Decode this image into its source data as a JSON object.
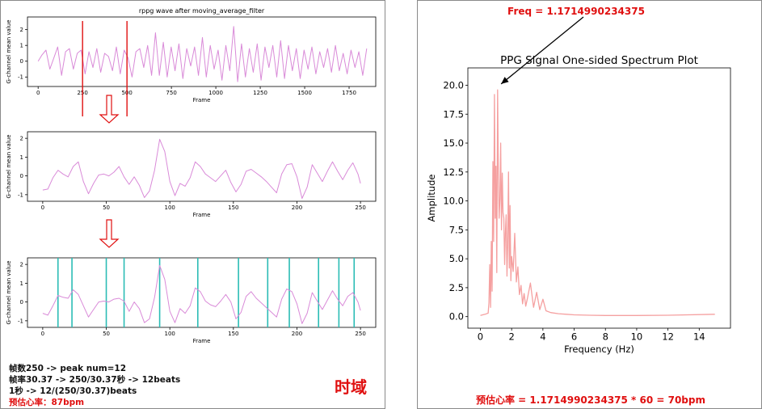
{
  "left": {
    "domain_label": "时域",
    "notes": [
      "帧数250 -> peak num=12",
      "帧率30.37 -> 250/30.37秒 -> 12beats",
      "1秒 -> 12/(250/30.37)beats"
    ],
    "estimate": "预估心率：87bpm"
  },
  "right": {
    "annotation": "Freq = 1.1714990234375",
    "result": "预估心率 = 1.1714990234375 * 60 = 70bpm"
  },
  "colors": {
    "wave": "#d98ad8",
    "spectrum": "#f5a0a0",
    "peak_line": "#2bbcb5",
    "marker": "#e01010",
    "axis": "#000000"
  },
  "chart_data": [
    {
      "id": "wave_full",
      "type": "line",
      "title": "rppg wave after moving_average_filter",
      "xlabel": "Frame",
      "ylabel": "G-channel mean value",
      "xlim": [
        -60,
        1900
      ],
      "ylim": [
        -1.6,
        2.8
      ],
      "xticks": [
        0,
        250,
        500,
        750,
        1000,
        1250,
        1500,
        1750
      ],
      "yticks": [
        -1,
        0,
        1,
        2
      ],
      "n_points": 1850,
      "markers_x": [
        250,
        500
      ],
      "series": [
        {
          "values": [
            0.0,
            0.4,
            0.7,
            -0.5,
            0.2,
            0.9,
            -0.9,
            0.6,
            0.8,
            -0.5,
            0.5,
            0.7,
            -0.8,
            0.6,
            -0.4,
            0.8,
            -0.7,
            0.5,
            0.3,
            -0.6,
            0.9,
            -0.8,
            0.7,
            0.2,
            -1.0,
            0.6,
            0.8,
            -0.4,
            1.0,
            -0.9,
            1.8,
            -0.9,
            1.2,
            -1.0,
            0.9,
            -0.6,
            1.1,
            -1.1,
            0.8,
            -0.3,
            0.9,
            -0.9,
            1.5,
            -1.0,
            1.0,
            -0.5,
            0.7,
            -1.2,
            1.0,
            -0.6,
            2.2,
            -1.3,
            1.1,
            -1.0,
            0.8,
            -0.7,
            1.1,
            -1.2,
            0.9,
            -0.4,
            1.0,
            -1.0,
            1.3,
            -1.1,
            1.0,
            -0.6,
            0.8,
            -1.1,
            0.7,
            -0.5,
            0.9,
            -0.8,
            0.6,
            -0.4,
            0.8,
            -0.7,
            1.0,
            -0.6,
            0.5,
            -0.8,
            0.7,
            -0.4,
            0.6,
            -0.9,
            0.8
          ]
        }
      ]
    },
    {
      "id": "wave_zoom",
      "type": "line",
      "xlabel": "Frame",
      "ylabel": "G-channel mean value",
      "xlim": [
        -12,
        262
      ],
      "ylim": [
        -1.35,
        2.35
      ],
      "xticks": [
        0,
        50,
        100,
        150,
        200,
        250
      ],
      "yticks": [
        -1,
        0,
        1,
        2
      ],
      "series": [
        {
          "x": [
            0,
            4,
            8,
            12,
            16,
            20,
            24,
            28,
            32,
            36,
            40,
            44,
            48,
            52,
            56,
            60,
            64,
            68,
            72,
            76,
            80,
            84,
            88,
            92,
            96,
            100,
            104,
            108,
            112,
            116,
            120,
            124,
            128,
            132,
            136,
            140,
            144,
            148,
            152,
            156,
            160,
            164,
            168,
            172,
            176,
            180,
            184,
            188,
            192,
            196,
            200,
            204,
            208,
            212,
            216,
            220,
            224,
            228,
            232,
            236,
            240,
            244,
            248,
            250
          ],
          "values": [
            -0.75,
            -0.7,
            -0.1,
            0.3,
            0.1,
            -0.05,
            0.5,
            0.75,
            -0.3,
            -0.95,
            -0.4,
            0.05,
            0.1,
            0.0,
            0.2,
            0.5,
            -0.05,
            -0.45,
            -0.05,
            -0.5,
            -1.15,
            -0.8,
            0.3,
            1.95,
            1.3,
            -0.3,
            -1.05,
            -0.4,
            -0.55,
            -0.1,
            0.75,
            0.5,
            0.1,
            -0.1,
            -0.3,
            0.0,
            0.3,
            -0.35,
            -0.85,
            -0.45,
            0.25,
            0.35,
            0.15,
            -0.05,
            -0.3,
            -0.6,
            -0.9,
            0.1,
            0.6,
            0.65,
            -0.05,
            -1.2,
            -0.6,
            0.6,
            0.15,
            -0.3,
            0.25,
            0.75,
            0.25,
            -0.2,
            0.3,
            0.7,
            0.1,
            -0.4
          ]
        }
      ]
    },
    {
      "id": "wave_peaks",
      "type": "line",
      "xlabel": "Frame",
      "ylabel": "G-channel mean value",
      "xlim": [
        -12,
        262
      ],
      "ylim": [
        -1.35,
        2.35
      ],
      "xticks": [
        0,
        50,
        100,
        150,
        200,
        250
      ],
      "yticks": [
        -1,
        0,
        1,
        2
      ],
      "peaks_x": [
        12,
        23,
        50,
        64,
        92,
        122,
        154,
        177,
        194,
        217,
        233,
        245
      ],
      "series": [
        {
          "x": [
            0,
            4,
            8,
            12,
            16,
            20,
            24,
            28,
            32,
            36,
            40,
            44,
            48,
            52,
            56,
            60,
            64,
            68,
            72,
            76,
            80,
            84,
            88,
            92,
            96,
            100,
            104,
            108,
            112,
            116,
            120,
            124,
            128,
            132,
            136,
            140,
            144,
            148,
            152,
            156,
            160,
            164,
            168,
            172,
            176,
            180,
            184,
            188,
            192,
            196,
            200,
            204,
            208,
            212,
            216,
            220,
            224,
            228,
            232,
            236,
            240,
            244,
            248,
            250
          ],
          "values": [
            -0.6,
            -0.7,
            -0.2,
            0.35,
            0.25,
            0.2,
            0.65,
            0.4,
            -0.2,
            -0.8,
            -0.4,
            0.0,
            0.05,
            0.0,
            0.15,
            0.2,
            0.05,
            -0.5,
            0.0,
            -0.35,
            -1.1,
            -0.9,
            0.25,
            1.95,
            1.2,
            -0.5,
            -1.1,
            -0.35,
            -0.6,
            -0.2,
            0.75,
            0.55,
            0.05,
            -0.15,
            -0.25,
            0.05,
            0.4,
            0.0,
            -0.9,
            -0.55,
            0.3,
            0.55,
            0.2,
            -0.05,
            -0.3,
            -0.55,
            -0.8,
            0.15,
            0.7,
            0.55,
            -0.1,
            -1.15,
            -0.6,
            0.5,
            0.05,
            -0.4,
            0.1,
            0.6,
            0.15,
            -0.2,
            0.3,
            0.5,
            0.0,
            -0.45
          ]
        }
      ]
    },
    {
      "id": "spectrum",
      "type": "line",
      "title": "PPG Signal One-sided Spectrum Plot",
      "xlabel": "Frequency (Hz)",
      "ylabel": "Amplitude",
      "xlim": [
        -0.8,
        16.0
      ],
      "ylim": [
        -1.0,
        21.5
      ],
      "xticks": [
        0,
        2,
        4,
        6,
        8,
        10,
        12,
        14
      ],
      "yticks": [
        0.0,
        2.5,
        5.0,
        7.5,
        10.0,
        12.5,
        15.0,
        17.5,
        20.0
      ],
      "peak": {
        "x": 1.1714990234375,
        "y": 19.9
      },
      "series": [
        {
          "x": [
            0.0,
            0.3,
            0.5,
            0.55,
            0.6,
            0.65,
            0.7,
            0.75,
            0.8,
            0.85,
            0.9,
            0.95,
            1.0,
            1.05,
            1.1,
            1.15,
            1.2,
            1.25,
            1.3,
            1.35,
            1.4,
            1.45,
            1.5,
            1.55,
            1.6,
            1.65,
            1.7,
            1.75,
            1.8,
            1.85,
            1.9,
            1.95,
            2.0,
            2.1,
            2.2,
            2.3,
            2.4,
            2.5,
            2.6,
            2.7,
            2.8,
            2.9,
            3.0,
            3.2,
            3.4,
            3.6,
            3.8,
            4.0,
            4.2,
            4.5,
            5.0,
            5.5,
            6.0,
            7.0,
            8.0,
            10.0,
            12.0,
            15.0
          ],
          "values": [
            0.1,
            0.2,
            0.3,
            1.2,
            4.5,
            0.8,
            6.5,
            2.2,
            13.4,
            6.5,
            19.2,
            8.5,
            13.0,
            3.8,
            19.6,
            12.8,
            8.5,
            10.2,
            15.0,
            7.5,
            12.4,
            9.0,
            8.5,
            4.5,
            7.2,
            8.8,
            3.5,
            6.2,
            12.5,
            4.2,
            9.6,
            3.1,
            5.2,
            3.9,
            7.2,
            3.0,
            4.3,
            1.9,
            2.7,
            1.1,
            2.0,
            0.9,
            1.5,
            2.9,
            0.8,
            2.1,
            0.6,
            1.5,
            0.5,
            0.35,
            0.25,
            0.2,
            0.15,
            0.12,
            0.1,
            0.1,
            0.12,
            0.2
          ]
        }
      ]
    }
  ]
}
